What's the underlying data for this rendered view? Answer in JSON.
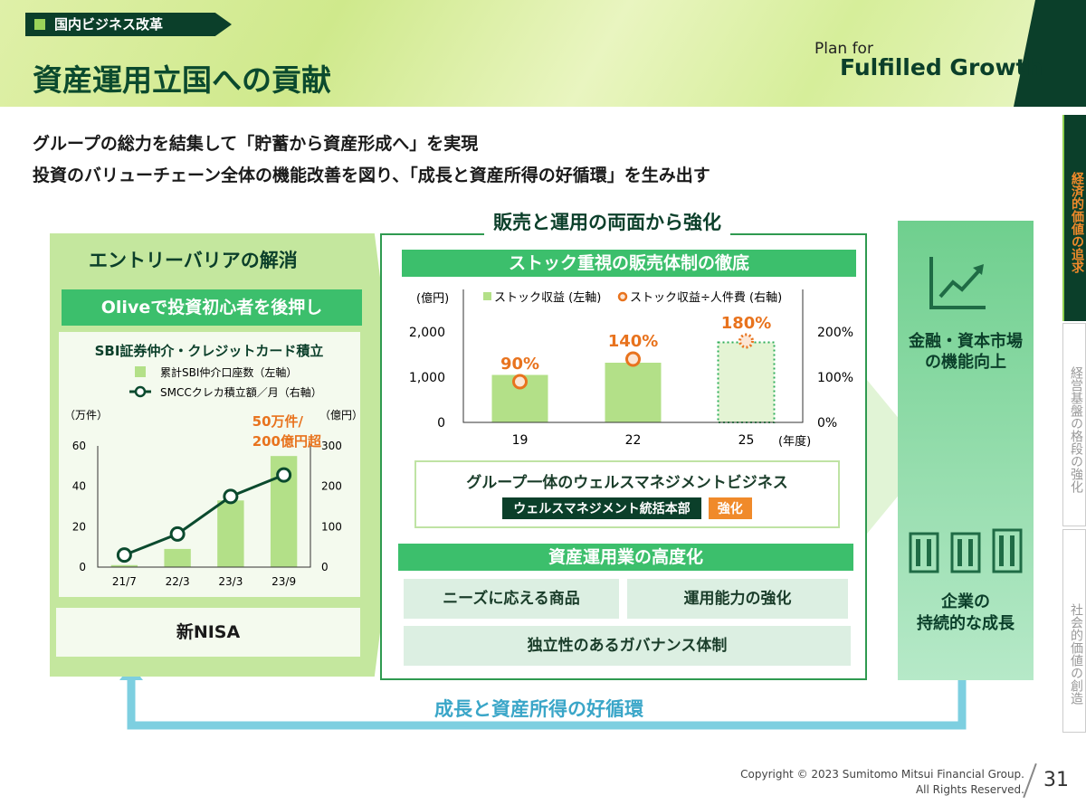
{
  "header": {
    "tag": "国内ビジネス改革",
    "title": "資産運用立国への貢献",
    "logo_line1": "Plan for",
    "logo_line2": "Fulfilled Growth"
  },
  "subtitles": [
    "グループの総力を結集して「貯蓄から資産形成へ」を実現",
    "投資のバリューチェーン全体の機能改善を図り、「成長と資産所得の好循環」を生み出す"
  ],
  "side_tabs": [
    {
      "label": "経済的価値の追求",
      "active": true
    },
    {
      "label": "経営基盤の格段の強化",
      "active": false
    },
    {
      "label": "社会的価値の創造",
      "active": false
    }
  ],
  "left": {
    "title": "エントリーバリアの解消",
    "banner": "Oliveで投資初心者を後押し",
    "nisa": "新NISA"
  },
  "middle": {
    "heading": "販売と運用の両面から強化",
    "bar1": "ストック重視の販売体制の徹底",
    "wealth_title": "グループ一体のウェルスマネジメントビジネス",
    "wealth_dept": "ウェルスマネジメント統括本部",
    "wealth_badge": "強化",
    "bar2": "資産運用業の高度化",
    "items": [
      "ニーズに応える商品",
      "運用能力の強化",
      "独立性のあるガバナンス体制"
    ]
  },
  "right": {
    "top": "金融・資本市場\nの機能向上",
    "bottom": "企業の\n持続的な成長"
  },
  "cycle": "成長と資産所得の好循環",
  "footer": {
    "copyright1": "Copyright © 2023 Sumitomo Mitsui Financial Group.",
    "copyright2": "All Rights Reserved.",
    "page": "31"
  },
  "colors": {
    "dark_green": "#0b3f2a",
    "accent_orange": "#e8731e",
    "bar_green": "#b3e088",
    "cycle_blue": "#7dcfe0"
  },
  "chart_data": [
    {
      "type": "bar",
      "title": "SBI証券仲介・クレジットカード積立",
      "categories": [
        "21/7",
        "22/3",
        "23/3",
        "23/9"
      ],
      "series": [
        {
          "name": "累計SBI仲介口座数（左軸）",
          "type": "bar",
          "axis": "left",
          "values": [
            1,
            9,
            33,
            55
          ]
        },
        {
          "name": "SMCCクレカ積立額／月（右軸）",
          "type": "line",
          "axis": "right",
          "values": [
            30,
            82,
            175,
            228
          ]
        }
      ],
      "ylabel_left": "（万件）",
      "ylabel_right": "（億円）",
      "ylim_left": [
        0,
        60
      ],
      "ylim_right": [
        0,
        300
      ],
      "yticks_left": [
        "0",
        "20",
        "40",
        "60"
      ],
      "yticks_right": [
        "0",
        "100",
        "200",
        "300"
      ],
      "annotation": [
        "50万件/",
        "200億円超"
      ]
    },
    {
      "type": "bar",
      "categories": [
        "19",
        "22",
        "25"
      ],
      "series": [
        {
          "name": "ストック収益 (左軸)",
          "type": "bar",
          "axis": "left",
          "values": [
            1050,
            1320,
            1770
          ],
          "projected": [
            false,
            false,
            true
          ]
        },
        {
          "name": "ストック収益÷人件費 (右軸)",
          "type": "marker",
          "axis": "right",
          "values": [
            90,
            140,
            180
          ],
          "labels": [
            "90%",
            "140%",
            "180%"
          ]
        }
      ],
      "ylabel_left": "(億円)",
      "xlabel": "(年度)",
      "ylim_left": [
        0,
        2500
      ],
      "ylim_right": [
        0,
        250
      ],
      "yticks_left": [
        "0",
        "1,000",
        "2,000"
      ],
      "yticks_right": [
        "0%",
        "100%",
        "200%"
      ]
    }
  ]
}
